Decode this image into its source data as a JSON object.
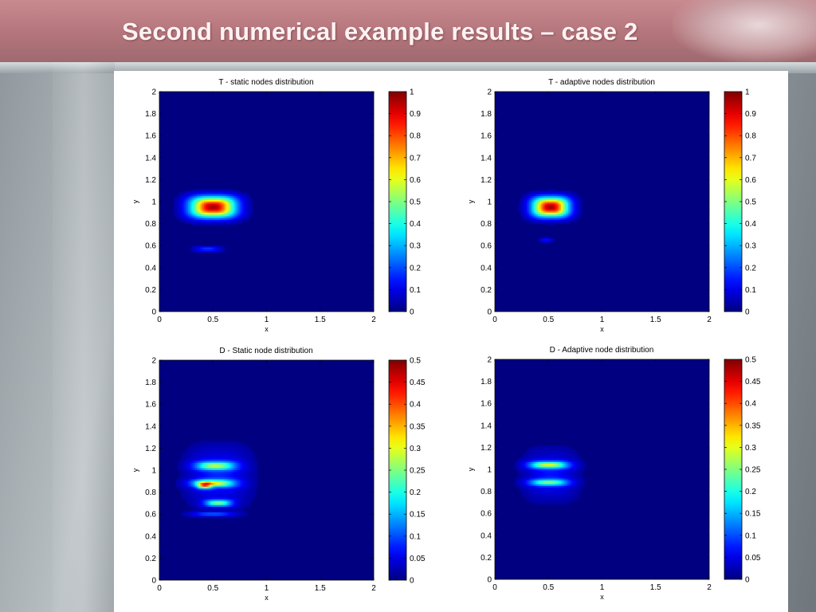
{
  "slide": {
    "title": "Second numerical example results – case 2"
  },
  "chart_data": [
    {
      "type": "heatmap",
      "title": "T - static nodes distribution",
      "xlabel": "x",
      "ylabel": "y",
      "xlim": [
        0,
        2
      ],
      "ylim": [
        0,
        2
      ],
      "xticks": [
        "0",
        "0.5",
        "1",
        "1.5",
        "2"
      ],
      "yticks": [
        "0",
        "0.2",
        "0.4",
        "0.6",
        "0.8",
        "1",
        "1.2",
        "1.4",
        "1.6",
        "1.8",
        "2"
      ],
      "colorbar": {
        "min": 0,
        "max": 1,
        "ticks": [
          "0",
          "0.1",
          "0.2",
          "0.3",
          "0.4",
          "0.5",
          "0.6",
          "0.7",
          "0.8",
          "0.9",
          "1"
        ]
      },
      "blobs": [
        {
          "cx": 0.5,
          "cy": 0.95,
          "sx": 0.2,
          "sy": 0.09,
          "amp": 0.97
        },
        {
          "cx": 0.45,
          "cy": 0.57,
          "sx": 0.13,
          "sy": 0.025,
          "amp": 0.18
        }
      ]
    },
    {
      "type": "heatmap",
      "title": "T - adaptive nodes distribution",
      "xlabel": "x",
      "ylabel": "y",
      "xlim": [
        0,
        2
      ],
      "ylim": [
        0,
        2
      ],
      "xticks": [
        "0",
        "0.5",
        "1",
        "1.5",
        "2"
      ],
      "yticks": [
        "0",
        "0.2",
        "0.4",
        "0.6",
        "0.8",
        "1",
        "1.2",
        "1.4",
        "1.6",
        "1.8",
        "2"
      ],
      "colorbar": {
        "min": 0,
        "max": 1,
        "ticks": [
          "0",
          "0.1",
          "0.2",
          "0.3",
          "0.4",
          "0.5",
          "0.6",
          "0.7",
          "0.8",
          "0.9",
          "1"
        ]
      },
      "blobs": [
        {
          "cx": 0.52,
          "cy": 0.95,
          "sx": 0.16,
          "sy": 0.085,
          "amp": 0.97
        },
        {
          "cx": 0.48,
          "cy": 0.65,
          "sx": 0.06,
          "sy": 0.02,
          "amp": 0.15
        }
      ]
    },
    {
      "type": "heatmap",
      "title": "D - Static node distribution",
      "xlabel": "x",
      "ylabel": "y",
      "xlim": [
        0,
        2
      ],
      "ylim": [
        0,
        2
      ],
      "xticks": [
        "0",
        "0.5",
        "1",
        "1.5",
        "2"
      ],
      "yticks": [
        "0",
        "0.2",
        "0.4",
        "0.6",
        "0.8",
        "1",
        "1.2",
        "1.4",
        "1.6",
        "1.8",
        "2"
      ],
      "colorbar": {
        "min": 0,
        "max": 0.5,
        "ticks": [
          "0",
          "0.05",
          "0.1",
          "0.15",
          "0.2",
          "0.25",
          "0.3",
          "0.35",
          "0.4",
          "0.45",
          "0.5"
        ]
      },
      "blobs": [
        {
          "cx": 0.52,
          "cy": 1.04,
          "sx": 0.17,
          "sy": 0.035,
          "amp": 0.22
        },
        {
          "cx": 0.5,
          "cy": 0.88,
          "sx": 0.18,
          "sy": 0.03,
          "amp": 0.25
        },
        {
          "cx": 0.42,
          "cy": 0.86,
          "sx": 0.06,
          "sy": 0.03,
          "amp": 0.22
        },
        {
          "cx": 0.55,
          "cy": 0.7,
          "sx": 0.12,
          "sy": 0.03,
          "amp": 0.22
        },
        {
          "cx": 0.5,
          "cy": 0.6,
          "sx": 0.2,
          "sy": 0.02,
          "amp": 0.1
        },
        {
          "cx": 0.55,
          "cy": 0.95,
          "sx": 0.28,
          "sy": 0.25,
          "amp": 0.08
        }
      ]
    },
    {
      "type": "heatmap",
      "title": "D - Adaptive node distribution",
      "xlabel": "x",
      "ylabel": "y",
      "xlim": [
        0,
        2
      ],
      "ylim": [
        0,
        2
      ],
      "xticks": [
        "0",
        "0.5",
        "1",
        "1.5",
        "2"
      ],
      "yticks": [
        "0",
        "0.2",
        "0.4",
        "0.6",
        "0.8",
        "1",
        "1.2",
        "1.4",
        "1.6",
        "1.8",
        "2"
      ],
      "colorbar": {
        "min": 0,
        "max": 0.5,
        "ticks": [
          "0",
          "0.05",
          "0.1",
          "0.15",
          "0.2",
          "0.25",
          "0.3",
          "0.35",
          "0.4",
          "0.45",
          "0.5"
        ]
      },
      "blobs": [
        {
          "cx": 0.5,
          "cy": 1.04,
          "sx": 0.17,
          "sy": 0.03,
          "amp": 0.24
        },
        {
          "cx": 0.5,
          "cy": 0.88,
          "sx": 0.17,
          "sy": 0.028,
          "amp": 0.19
        },
        {
          "cx": 0.52,
          "cy": 0.95,
          "sx": 0.24,
          "sy": 0.22,
          "amp": 0.07
        }
      ]
    }
  ]
}
